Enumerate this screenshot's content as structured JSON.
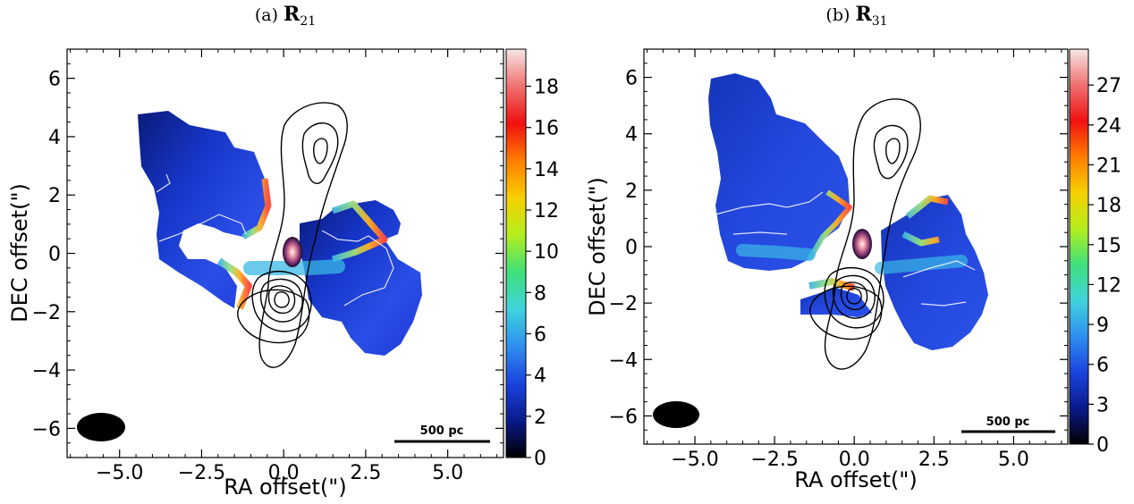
{
  "chart_data": [
    {
      "type": "heatmap",
      "panel_label": "(a)",
      "title_symbol": "R",
      "title_subscript": "21",
      "xlabel": "RA offset(\")",
      "ylabel": "DEC offset(\")",
      "xlim": [
        -6.6,
        6.7
      ],
      "ylim": [
        -7.0,
        7.0
      ],
      "x_ticks": [
        "−5.0",
        "−2.5",
        "0.0",
        "2.5",
        "5.0"
      ],
      "x_tick_values": [
        -5.0,
        -2.5,
        0.0,
        2.5,
        5.0
      ],
      "y_ticks": [
        "6",
        "4",
        "2",
        "0",
        "−2",
        "−4",
        "−6"
      ],
      "y_tick_values": [
        6,
        4,
        2,
        0,
        -2,
        -4,
        -6
      ],
      "colorbar": {
        "min": 0,
        "max": 19.8,
        "ticks": [
          "0",
          "2",
          "4",
          "6",
          "8",
          "10",
          "12",
          "14",
          "16",
          "18"
        ],
        "tick_values": [
          0,
          2,
          4,
          6,
          8,
          10,
          12,
          14,
          16,
          18
        ],
        "colormap": [
          "#000000",
          "#0a1a8c",
          "#1a44e0",
          "#2f8ff0",
          "#3fd3dc",
          "#3ee07a",
          "#b4ee1e",
          "#f6d000",
          "#ff7d00",
          "#f01010",
          "#f07070",
          "#f6e6e6"
        ]
      },
      "scale_bar_label": "500 pc",
      "beam": "filled ellipse, bottom-left"
    },
    {
      "type": "heatmap",
      "panel_label": "(b)",
      "title_symbol": "R",
      "title_subscript": "31",
      "xlabel": "RA offset(\")",
      "ylabel": "DEC offset(\")",
      "xlim": [
        -6.6,
        6.7
      ],
      "ylim": [
        -7.0,
        7.0
      ],
      "x_ticks": [
        "−5.0",
        "−2.5",
        "0.0",
        "2.5",
        "5.0"
      ],
      "x_tick_values": [
        -5.0,
        -2.5,
        0.0,
        2.5,
        5.0
      ],
      "y_ticks": [
        "6",
        "4",
        "2",
        "0",
        "−2",
        "−4",
        "−6"
      ],
      "y_tick_values": [
        6,
        4,
        2,
        0,
        -2,
        -4,
        -6
      ],
      "colorbar": {
        "min": 0,
        "max": 29.7,
        "ticks": [
          "0",
          "3",
          "6",
          "9",
          "12",
          "15",
          "18",
          "21",
          "24",
          "27"
        ],
        "tick_values": [
          0,
          3,
          6,
          9,
          12,
          15,
          18,
          21,
          24,
          27
        ],
        "colormap": [
          "#000000",
          "#0a1a8c",
          "#1a44e0",
          "#2f8ff0",
          "#3fd3dc",
          "#3ee07a",
          "#b4ee1e",
          "#f6d000",
          "#ff7d00",
          "#f01010",
          "#f07070",
          "#f6e6e6"
        ]
      },
      "scale_bar_label": "500 pc",
      "beam": "filled ellipse, bottom-left"
    }
  ]
}
